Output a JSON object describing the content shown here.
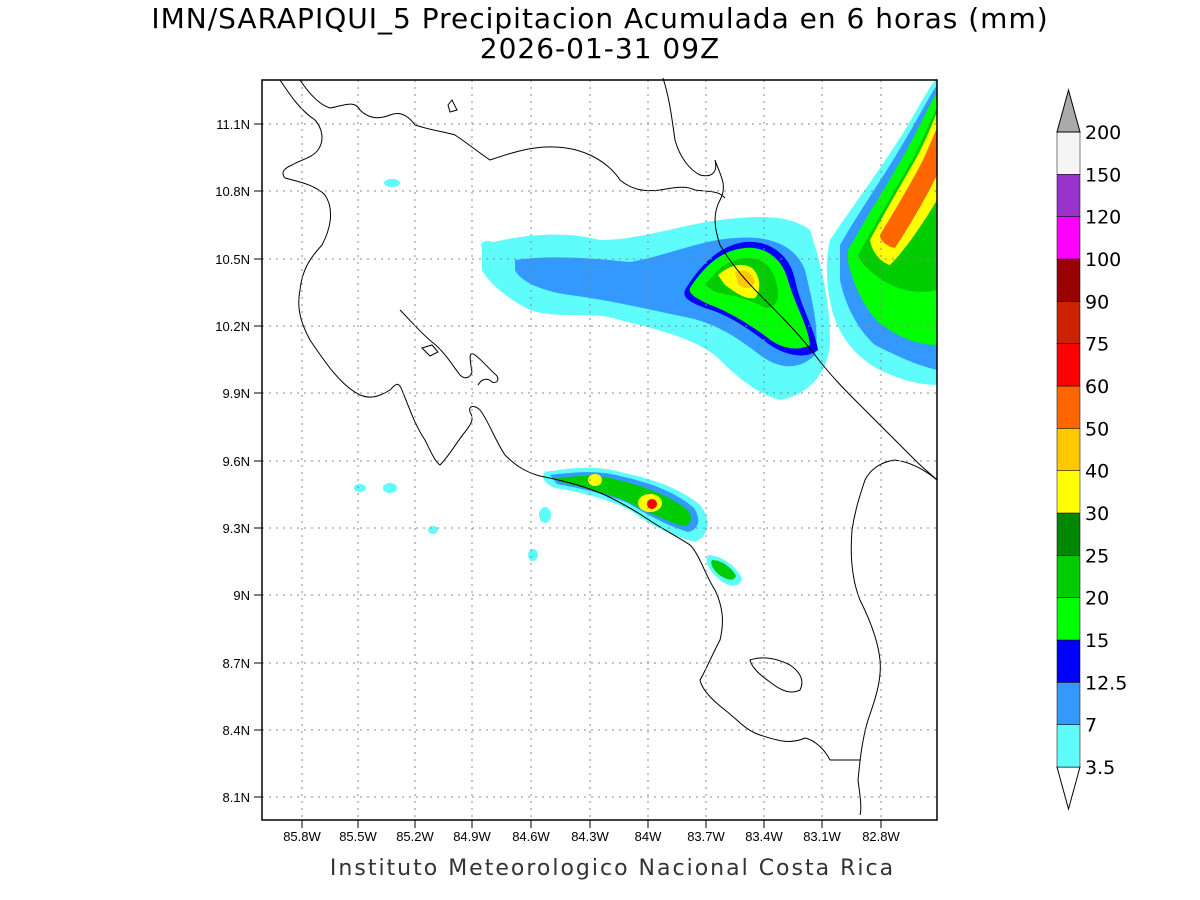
{
  "title": "IMN/SARAPIQUI_5 Precipitacion Acumulada en 6 horas (mm)",
  "subtitle": "2026-01-31 09Z",
  "footer": "Instituto Meteorologico Nacional Costa Rica",
  "lon_ticks": [
    "85.8W",
    "85.5W",
    "85.2W",
    "84.9W",
    "84.6W",
    "84.3W",
    "84W",
    "83.7W",
    "83.4W",
    "83.1W",
    "82.8W"
  ],
  "lat_ticks": [
    "11.1N",
    "10.8N",
    "10.5N",
    "10.2N",
    "9.9N",
    "9.6N",
    "9.3N",
    "9N",
    "8.7N",
    "8.4N",
    "8.1N"
  ],
  "colorbar": {
    "levels": [
      "3.5",
      "7",
      "12.5",
      "15",
      "20",
      "25",
      "30",
      "40",
      "50",
      "60",
      "75",
      "90",
      "100",
      "120",
      "150",
      "200"
    ],
    "colors": [
      "#ffffff",
      "#5ffcfc",
      "#3399ff",
      "#0000ff",
      "#00ff00",
      "#00cc00",
      "#008800",
      "#ffff00",
      "#ffc800",
      "#ff6600",
      "#ff0000",
      "#cc2200",
      "#990000",
      "#ff00ff",
      "#9933cc",
      "#f5f5f5",
      "#aaaaaa"
    ]
  }
}
